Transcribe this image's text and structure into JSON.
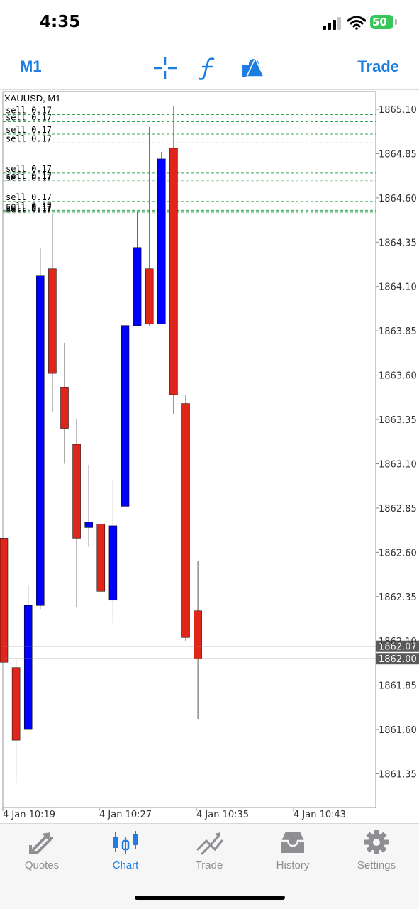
{
  "status": {
    "time": "4:35",
    "battery": "50"
  },
  "toolbar": {
    "timeframe": "M1",
    "trade": "Trade",
    "icons": [
      "crosshair-icon",
      "function-icon",
      "objects-icon"
    ]
  },
  "colors": {
    "accent": "#1e7ee0",
    "bull": "#0000ff",
    "bear": "#e0251b",
    "order_line": "#34a853",
    "grid": "#c8c8c8"
  },
  "chart_data": {
    "type": "candlestick",
    "title": "XAUUSD, M1",
    "xlabel": "",
    "ylabel": "",
    "ylim": [
      1861.16,
      1865.2
    ],
    "yticks": [
      "1865.10",
      "1864.85",
      "1864.60",
      "1864.35",
      "1864.10",
      "1863.85",
      "1863.60",
      "1863.35",
      "1863.10",
      "1862.85",
      "1862.60",
      "1862.35",
      "1862.10",
      "1861.85",
      "1861.60",
      "1861.35"
    ],
    "xticks": [
      "4 Jan 10:19",
      "4 Jan 10:27",
      "4 Jan 10:35",
      "4 Jan 10:43"
    ],
    "price_labels": [
      {
        "label": "1862.07",
        "value": 1862.07
      },
      {
        "label": "1862.00",
        "value": 1862.0
      }
    ],
    "orders": [
      {
        "label": "sell 0.17",
        "price": 1865.07
      },
      {
        "label": "sell 0.17",
        "price": 1865.03
      },
      {
        "label": "sell 0.17",
        "price": 1864.96
      },
      {
        "label": "sell 0.17",
        "price": 1864.91
      },
      {
        "label": "sell 0.17",
        "price": 1864.74
      },
      {
        "label": "sell 0.17",
        "price": 1864.7
      },
      {
        "label": "sell 0.17",
        "price": 1864.69
      },
      {
        "label": "sell 0.17",
        "price": 1864.58
      },
      {
        "label": "sell 0.17",
        "price": 1864.53
      },
      {
        "label": "sell 0.17",
        "price": 1864.52
      },
      {
        "label": "sell 0.17",
        "price": 1864.51
      }
    ],
    "candles": [
      {
        "o": 1862.68,
        "h": 1862.68,
        "l": 1861.9,
        "c": 1861.98
      },
      {
        "o": 1861.95,
        "h": 1862.0,
        "l": 1861.3,
        "c": 1861.54
      },
      {
        "o": 1861.6,
        "h": 1862.41,
        "l": 1861.6,
        "c": 1862.3
      },
      {
        "o": 1862.3,
        "h": 1864.32,
        "l": 1862.28,
        "c": 1864.16
      },
      {
        "o": 1864.2,
        "h": 1864.51,
        "l": 1863.39,
        "c": 1863.61
      },
      {
        "o": 1863.53,
        "h": 1863.78,
        "l": 1863.1,
        "c": 1863.3
      },
      {
        "o": 1863.21,
        "h": 1863.35,
        "l": 1862.29,
        "c": 1862.68
      },
      {
        "o": 1862.74,
        "h": 1863.09,
        "l": 1862.63,
        "c": 1862.77
      },
      {
        "o": 1862.76,
        "h": 1862.76,
        "l": 1862.39,
        "c": 1862.38
      },
      {
        "o": 1862.33,
        "h": 1863.01,
        "l": 1862.2,
        "c": 1862.75
      },
      {
        "o": 1862.86,
        "h": 1863.89,
        "l": 1862.46,
        "c": 1863.88
      },
      {
        "o": 1863.88,
        "h": 1864.52,
        "l": 1863.88,
        "c": 1864.32
      },
      {
        "o": 1864.2,
        "h": 1865.0,
        "l": 1863.88,
        "c": 1863.89
      },
      {
        "o": 1863.89,
        "h": 1864.86,
        "l": 1863.89,
        "c": 1864.82
      },
      {
        "o": 1864.88,
        "h": 1865.12,
        "l": 1863.38,
        "c": 1863.49
      },
      {
        "o": 1863.44,
        "h": 1863.49,
        "l": 1862.1,
        "c": 1862.12
      },
      {
        "o": 1862.27,
        "h": 1862.55,
        "l": 1861.66,
        "c": 1862.0
      }
    ]
  },
  "tabs": [
    {
      "label": "Quotes",
      "icon": "quotes-icon",
      "active": false
    },
    {
      "label": "Chart",
      "icon": "chart-icon",
      "active": true
    },
    {
      "label": "Trade",
      "icon": "trade-icon",
      "active": false
    },
    {
      "label": "History",
      "icon": "history-icon",
      "active": false
    },
    {
      "label": "Settings",
      "icon": "gear-icon",
      "active": false
    }
  ]
}
